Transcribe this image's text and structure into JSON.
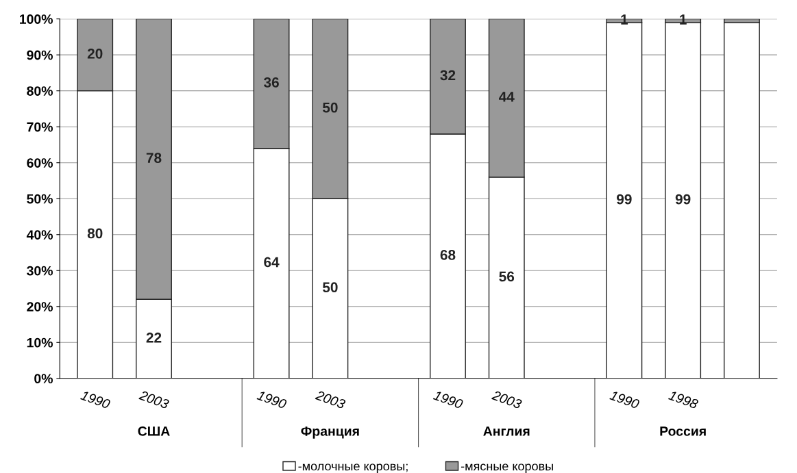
{
  "chart_data": {
    "type": "bar",
    "stacked": true,
    "categories": [
      "1990",
      "2003",
      null,
      "1990",
      "2003",
      null,
      "1990",
      "2003",
      null,
      "1990",
      "1998",
      null
    ],
    "series": [
      {
        "name": "-молочные коровы;",
        "color": "#ffffff",
        "values": [
          80,
          22,
          null,
          64,
          50,
          null,
          68,
          56,
          null,
          99,
          99,
          99
        ],
        "value_labels": [
          "80",
          "22",
          null,
          "64",
          "50",
          null,
          "68",
          "56",
          null,
          "99",
          "99",
          null
        ]
      },
      {
        "name": "-мясные коровы",
        "color": "#999999",
        "values": [
          20,
          78,
          null,
          36,
          50,
          null,
          32,
          44,
          null,
          1,
          1,
          1
        ],
        "value_labels": [
          "20",
          "78",
          null,
          "36",
          "50",
          null,
          "32",
          "44",
          null,
          "1",
          "1",
          null
        ]
      }
    ],
    "ylim": [
      0,
      100
    ],
    "yticks": [
      {
        "value": 0,
        "label": "0%"
      },
      {
        "value": 10,
        "label": "10%"
      },
      {
        "value": 20,
        "label": "20%"
      },
      {
        "value": 30,
        "label": "30%"
      },
      {
        "value": 40,
        "label": "40%"
      },
      {
        "value": 50,
        "label": "50%"
      },
      {
        "value": 60,
        "label": "60%"
      },
      {
        "value": 70,
        "label": "70%"
      },
      {
        "value": 80,
        "label": "80%"
      },
      {
        "value": 90,
        "label": "90%"
      },
      {
        "value": 100,
        "label": "100%"
      }
    ],
    "grid": "y",
    "legend": "bottom",
    "annotations": [
      "США",
      "Франция",
      "Англия",
      "Россия"
    ]
  }
}
